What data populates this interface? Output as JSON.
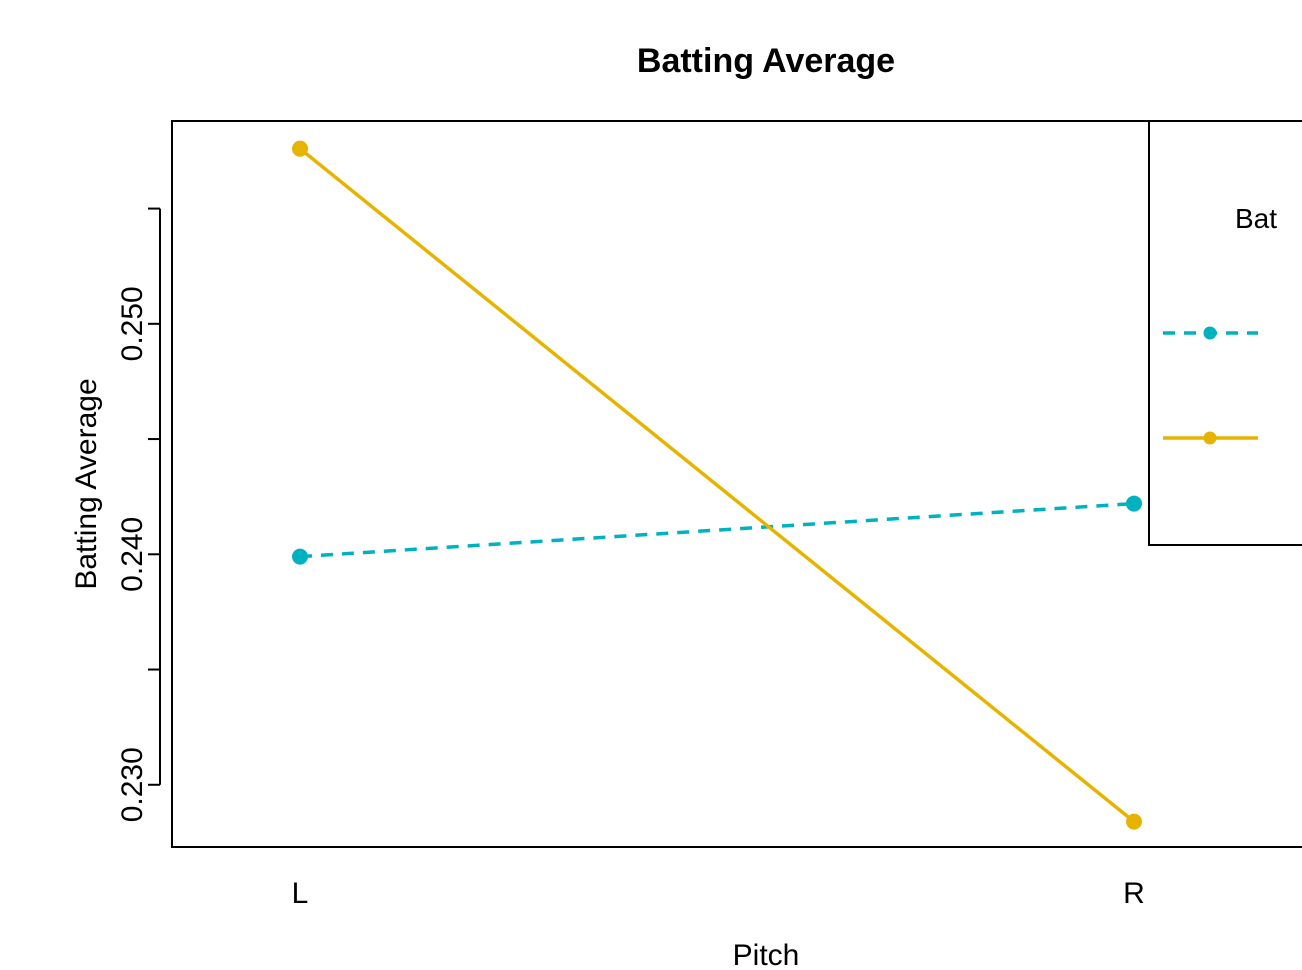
{
  "chart_data": {
    "type": "line",
    "title": "Batting Average",
    "xlabel": "Pitch",
    "ylabel": "Batting Average",
    "categories": [
      "L",
      "R"
    ],
    "yticks": [
      "0.230",
      "0.240",
      "0.250"
    ],
    "ylim": [
      0.2273,
      0.2588
    ],
    "legend": {
      "title": "Bat",
      "placement": "top-right"
    },
    "series": [
      {
        "values": [
          0.2399,
          0.2422
        ],
        "color": "#00B2BF",
        "linestyle": "dashed",
        "marker": "circle"
      },
      {
        "values": [
          0.2576,
          0.2284
        ],
        "color": "#E6B400",
        "linestyle": "solid",
        "marker": "circle"
      }
    ]
  }
}
